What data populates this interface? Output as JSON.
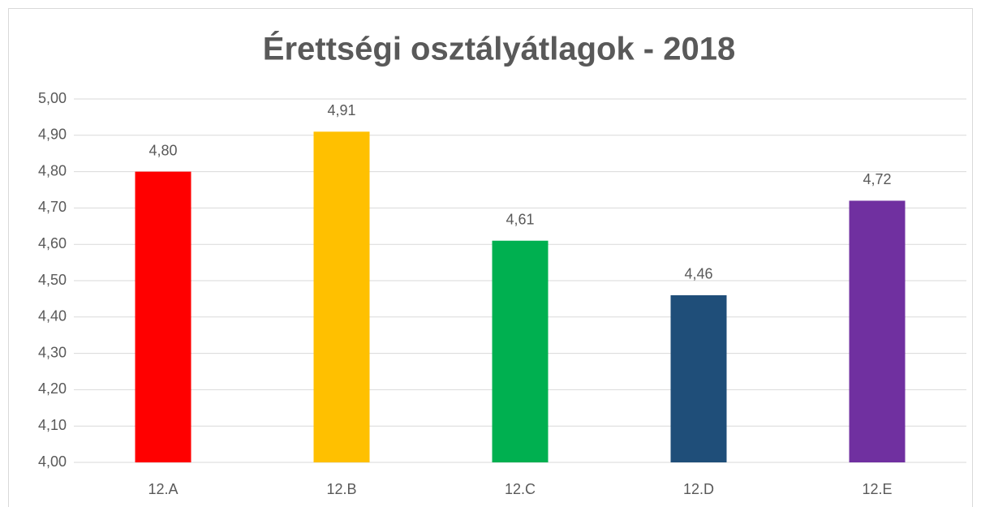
{
  "chart_data": {
    "type": "bar",
    "title": "Érettségi osztályátlagok - 2018",
    "categories": [
      "12.A",
      "12.B",
      "12.C",
      "12.D",
      "12.E"
    ],
    "values": [
      4.8,
      4.91,
      4.61,
      4.46,
      4.72
    ],
    "value_labels": [
      "4,80",
      "4,91",
      "4,61",
      "4,46",
      "4,72"
    ],
    "colors": [
      "#ff0000",
      "#ffc000",
      "#00b050",
      "#1f4e79",
      "#7030a0"
    ],
    "ylim": [
      4,
      5
    ],
    "yticks": [
      {
        "value": 4,
        "label": "4,00"
      },
      {
        "value": 4.1,
        "label": "4,10"
      },
      {
        "value": 4.2,
        "label": "4,20"
      },
      {
        "value": 4.3,
        "label": "4,30"
      },
      {
        "value": 4.4,
        "label": "4,40"
      },
      {
        "value": 4.5,
        "label": "4,50"
      },
      {
        "value": 4.6,
        "label": "4,60"
      },
      {
        "value": 4.7,
        "label": "4,70"
      },
      {
        "value": 4.8,
        "label": "4,80"
      },
      {
        "value": 4.9,
        "label": "4,90"
      },
      {
        "value": 5,
        "label": "5,00"
      }
    ],
    "grid": true
  }
}
